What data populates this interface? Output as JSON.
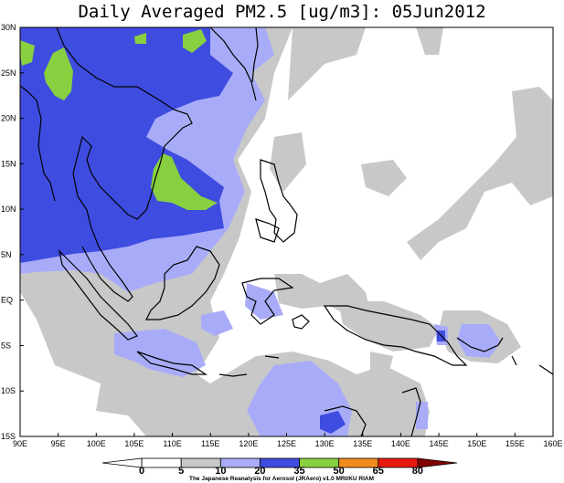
{
  "title": "Daily Averaged PM2.5 [ug/m3]: 05Jun2012",
  "map": {
    "region": "Southeast Asia / Maritime Continent",
    "variable": "PM2.5",
    "units": "ug/m3",
    "date": "05Jun2012",
    "lon_range": [
      90,
      160
    ],
    "lat_range": [
      -15,
      30
    ],
    "lon_ticks": [
      "90E",
      "95E",
      "100E",
      "105E",
      "110E",
      "115E",
      "120E",
      "125E",
      "130E",
      "135E",
      "140E",
      "145E",
      "150E",
      "155E",
      "160E"
    ],
    "lat_ticks": [
      "30N",
      "25N",
      "20N",
      "15N",
      "10N",
      "5N",
      "EQ",
      "5S",
      "10S",
      "15S"
    ]
  },
  "legend": {
    "levels": [
      "0",
      "5",
      "10",
      "20",
      "35",
      "50",
      "65",
      "80"
    ],
    "colors": [
      "#ffffff",
      "#ffffff",
      "#c8c8c8",
      "#a8acf8",
      "#3f4ce0",
      "#88d040",
      "#f08c1c",
      "#e81a10",
      "#800000"
    ]
  },
  "credit": "The Japanese Reanalysis for Aerosol (JRAero) v1.0 MRI/KU RIAM"
}
